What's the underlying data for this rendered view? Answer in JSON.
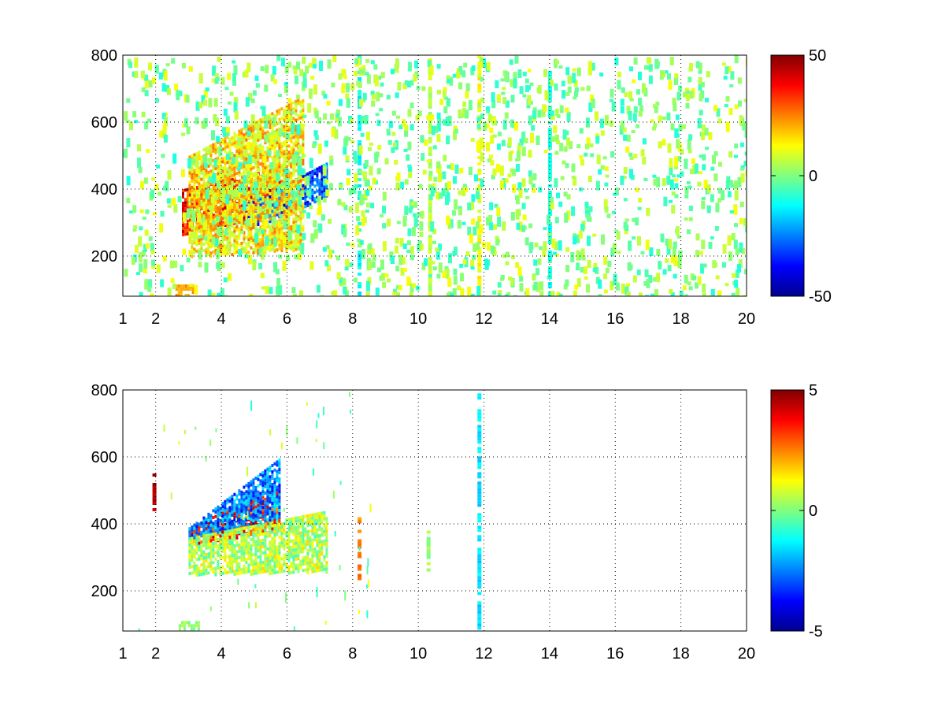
{
  "chart_data": [
    {
      "type": "heatmap",
      "title": "",
      "xlabel": "",
      "ylabel": "",
      "xlim": [
        1,
        20
      ],
      "ylim": [
        80,
        800
      ],
      "grid": true,
      "colormap": "jet",
      "x_ticks": [
        1,
        2,
        4,
        6,
        8,
        10,
        12,
        14,
        16,
        18,
        20
      ],
      "y_ticks": [
        200,
        400,
        600,
        800
      ],
      "colorbar": {
        "min": -50,
        "max": 50,
        "ticks": [
          50,
          0,
          -50
        ]
      },
      "features": [
        {
          "kind": "band",
          "x_start": 2.8,
          "x_end": 6.0,
          "y_low_start": 260,
          "y_low_end": 330,
          "y_high_start": 400,
          "y_high_end": 470,
          "value": 35
        },
        {
          "kind": "band",
          "x_start": 4.8,
          "x_end": 7.2,
          "y_low_start": 280,
          "y_low_end": 380,
          "y_high_start": 360,
          "y_high_end": 480,
          "value": -30
        },
        {
          "kind": "band",
          "x_start": 3.0,
          "x_end": 6.5,
          "y_low_start": 200,
          "y_low_end": 220,
          "y_high_start": 500,
          "y_high_end": 680,
          "value": 15
        },
        {
          "kind": "column",
          "x": 11.85,
          "y_low": 80,
          "y_high": 800,
          "value": 12
        },
        {
          "kind": "column",
          "x": 10.35,
          "y_low": 80,
          "y_high": 800,
          "value": 6
        },
        {
          "kind": "column",
          "x": 14.0,
          "y_low": 80,
          "y_high": 800,
          "value": -10
        },
        {
          "kind": "column",
          "x": 8.2,
          "y_low": 80,
          "y_high": 800,
          "value": -12
        },
        {
          "kind": "patch",
          "x_start": 2.6,
          "x_end": 3.2,
          "y_low": 80,
          "y_high": 115,
          "value": 22
        }
      ]
    },
    {
      "type": "heatmap",
      "title": "",
      "xlabel": "",
      "ylabel": "",
      "xlim": [
        1,
        20
      ],
      "ylim": [
        80,
        800
      ],
      "grid": true,
      "colormap": "jet",
      "x_ticks": [
        1,
        2,
        4,
        6,
        8,
        10,
        12,
        14,
        16,
        18,
        20
      ],
      "y_ticks": [
        200,
        400,
        600,
        800
      ],
      "colorbar": {
        "min": -5,
        "max": 5,
        "ticks": [
          5,
          0,
          -5
        ]
      },
      "features": [
        {
          "kind": "band",
          "x_start": 3.0,
          "x_end": 5.8,
          "y_low_start": 340,
          "y_low_end": 380,
          "y_high_start": 390,
          "y_high_end": 520,
          "value": 3.5
        },
        {
          "kind": "band",
          "x_start": 3.0,
          "x_end": 5.8,
          "y_low_start": 360,
          "y_low_end": 420,
          "y_high_start": 390,
          "y_high_end": 600,
          "value": -2.5
        },
        {
          "kind": "band",
          "x_start": 3.0,
          "x_end": 7.2,
          "y_low_start": 250,
          "y_low_end": 260,
          "y_high_start": 360,
          "y_high_end": 440,
          "value": 0.5
        },
        {
          "kind": "column",
          "x": 11.85,
          "y_low": 80,
          "y_high": 790,
          "value": -1.5
        },
        {
          "kind": "column",
          "x": 8.2,
          "y_low": 240,
          "y_high": 420,
          "value": 2.5
        },
        {
          "kind": "column",
          "x": 10.3,
          "y_low": 250,
          "y_high": 380,
          "value": 0.3
        },
        {
          "kind": "column",
          "x": 1.95,
          "y_low": 440,
          "y_high": 560,
          "value": 4.5
        },
        {
          "kind": "patch",
          "x_start": 2.7,
          "x_end": 3.3,
          "y_low": 88,
          "y_high": 110,
          "value": 0.2
        }
      ]
    }
  ]
}
